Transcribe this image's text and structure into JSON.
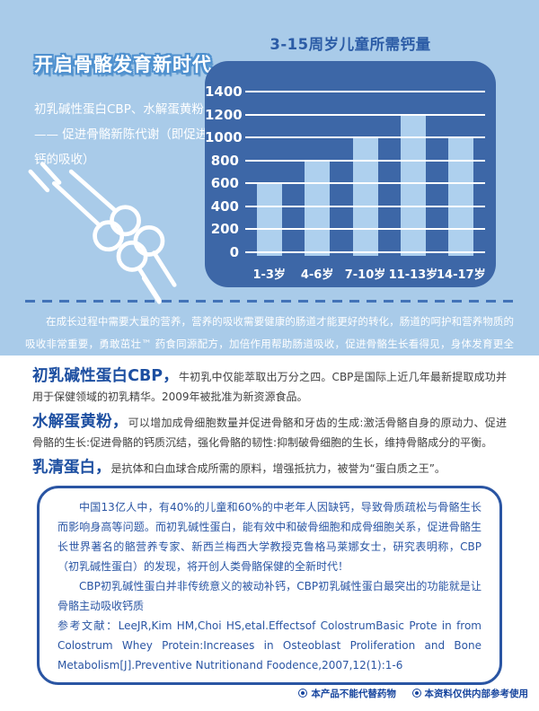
{
  "hero": {
    "title": "开启骨骼发育新时代",
    "subtitle_lines": [
      "初乳碱性蛋白CBP、水解蛋黄粉",
      "—— 促进骨骼新陈代谢（即促进",
      "钙的吸收）"
    ],
    "note": "在成长过程中需要大量的营养，营养的吸收需要健康的肠道才能更好的转化，肠道的呵护和营养物质的吸收非常重要，勇敢茁壮™ 药食同源配方，加倍作用帮助肠道吸收，促进骨骼生长看得见，身体发育更全面。"
  },
  "chart_data": {
    "type": "bar",
    "title": "3-15周岁儿童所需钙量",
    "categories": [
      "1-3岁",
      "4-6岁",
      "7-10岁",
      "11-13岁",
      "14-17岁"
    ],
    "values": [
      600,
      800,
      1000,
      1200,
      1000
    ],
    "xlabel": "",
    "ylabel": "",
    "ylim": [
      0,
      1400
    ],
    "yticks": [
      1400,
      1200,
      1000,
      800,
      600,
      400,
      200,
      0
    ],
    "grid": true,
    "legend": "none",
    "colors": {
      "panel_background": "#3d67a7",
      "bar": "#aed0ee",
      "gridline": "#ffffff",
      "tick_label": "#ffffff",
      "title": "#2c5ca6"
    }
  },
  "content": {
    "paragraphs": [
      {
        "lead": "初乳碱性蛋白CBP，",
        "body": "牛初乳中仅能萃取出万分之四。CBP是国际上近几年最新提取成功并用于保健领域的初乳精华。2009年被批准为新资源食品。"
      },
      {
        "lead": "水解蛋黄粉，",
        "body": "可以增加成骨细胞数量并促进骨骼和牙齿的生成:激活骨骼自身的原动力、促进骨骼的生长:促进骨骼的钙质沉结，强化骨骼的韧性:抑制破骨细胞的生长，维持骨骼成分的平衡。"
      },
      {
        "lead": "乳清蛋白，",
        "body": "是抗体和白血球合成所需的原料，增强抵抗力，被誉为“蛋白质之王”。"
      }
    ],
    "info_box": {
      "paragraph1": "中国13亿人中，有40%的儿童和60%的中老年人因缺钙，导致骨质疏松与骨骼生长而影响身高等问题。而初乳碱性蛋白，能有效中和破骨细胞和成骨细胞关系，促进骨骼生长世界著名的骼营养专家、新西兰梅西大学教授克鲁格马莱娜女士，研究表明称，CBP（初乳碱性蛋白）的发现，将开创人类骨骼保健的全新时代！",
      "paragraph2": "CBP初乳碱性蛋白并非传统意义的被动补钙，CBP初乳碱性蛋白最突出的功能就是让骨骼主动吸收钙质",
      "reference_label": "参考文献：",
      "reference": "LeeJR,Kim HM,Choi HS,etal.Effectsof ColostrumBasic Prote in from Colostrum Whey Protein:Increases in Osteoblast Proliferation and Bone Metabolism[J].Preventive Nutritionand Foodence,2007,12(1):1-6"
    }
  },
  "footer": {
    "notes": [
      "本产品不能代替药物",
      "本资料仅供内部参考使用"
    ]
  },
  "colors": {
    "hero_background": "#a9cbe9",
    "accent_blue": "#1d4fa1",
    "box_blue": "#2a55a3",
    "dashed_line": "#4273b8"
  }
}
